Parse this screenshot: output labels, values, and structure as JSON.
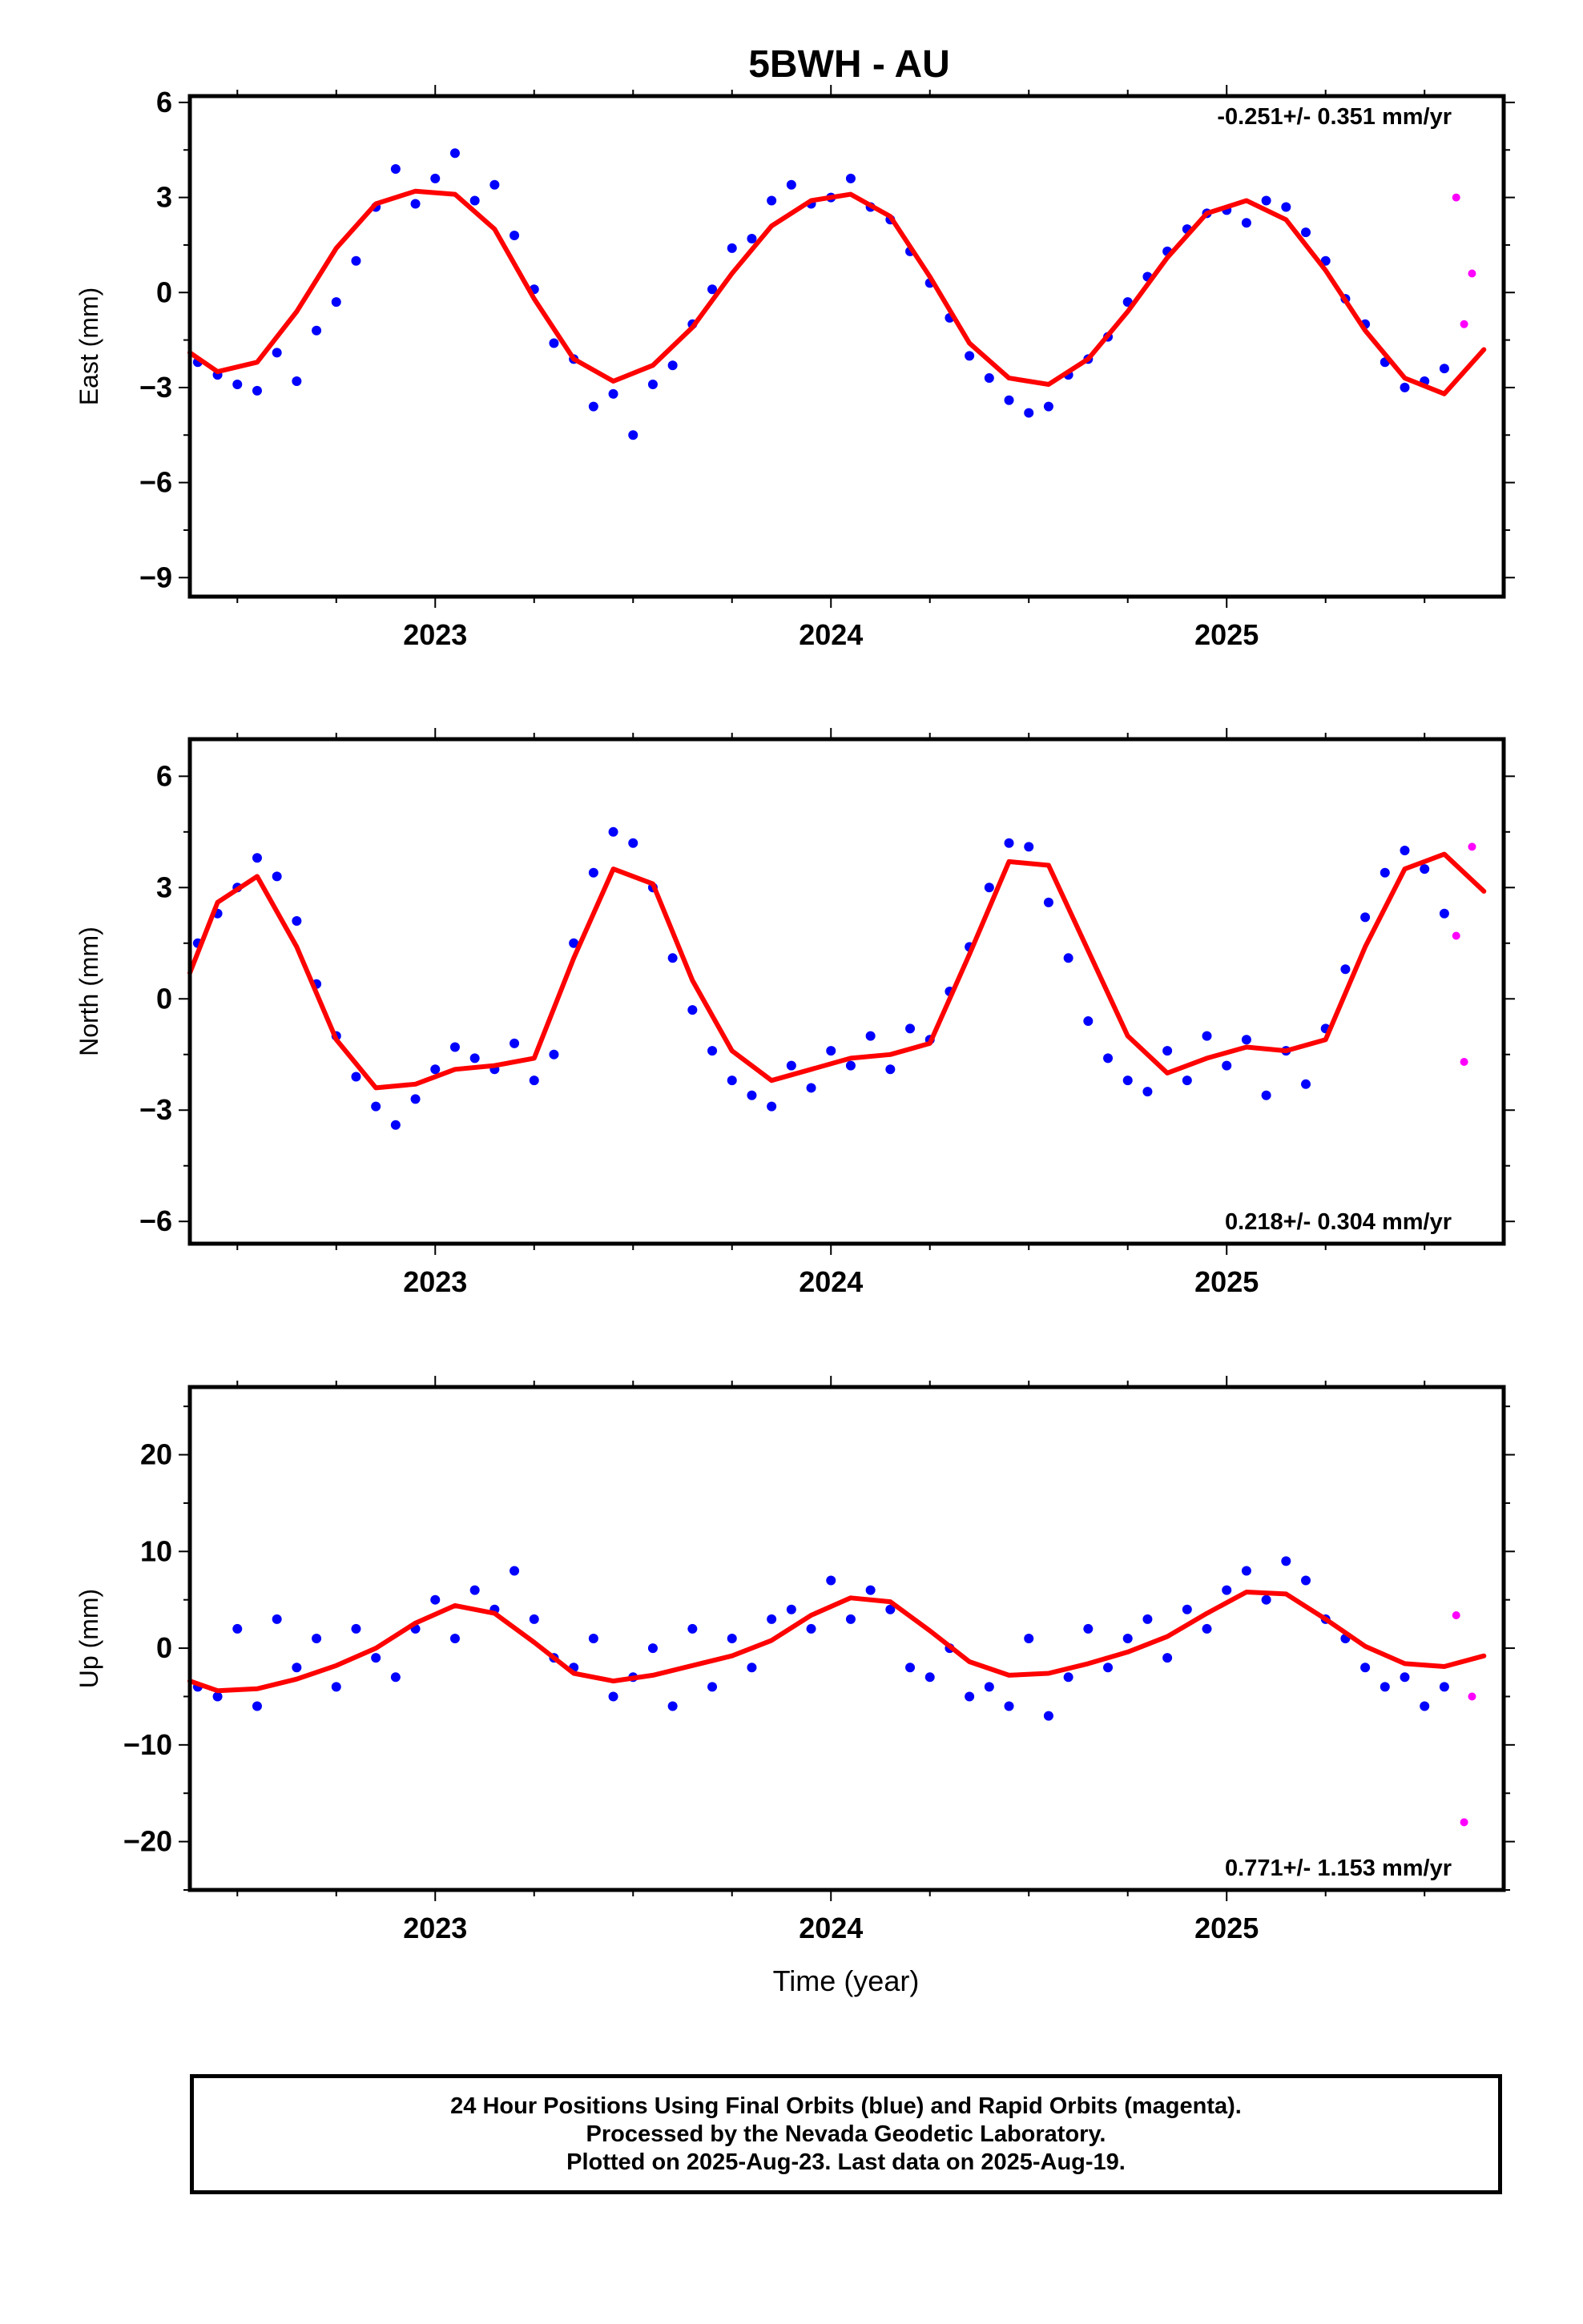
{
  "title": "5BWH - AU",
  "x_axis_label": "Time (year)",
  "colors": {
    "final_orbits": "#0000ff",
    "rapid_orbits": "#ff00ff",
    "fit": "#ff0000",
    "frame": "#000000"
  },
  "chart_data": [
    {
      "type": "scatter",
      "panel": "east",
      "ylabel": "East (mm)",
      "xlim": [
        2022.38,
        2025.7
      ],
      "ylim": [
        -9.6,
        6.2
      ],
      "x_ticks": [
        2023,
        2024,
        2025
      ],
      "x_tick_labels": [
        "2023",
        "2024",
        "2025"
      ],
      "y_ticks": [
        -9,
        -6,
        -3,
        0,
        3,
        6
      ],
      "y_tick_labels": [
        "−9",
        "−6",
        "−3",
        "0",
        "3",
        "6"
      ],
      "rate_text": "-0.251+/- 0.351 mm/yr",
      "rate_position": "top-right",
      "series": [
        {
          "role": "final",
          "x": [
            2022.4,
            2022.45,
            2022.5,
            2022.55,
            2022.6,
            2022.65,
            2022.7,
            2022.75,
            2022.8,
            2022.85,
            2022.9,
            2022.95,
            2023.0,
            2023.05,
            2023.1,
            2023.15,
            2023.2,
            2023.25,
            2023.3,
            2023.35,
            2023.4,
            2023.45,
            2023.5,
            2023.55,
            2023.6,
            2023.65,
            2023.7,
            2023.75,
            2023.8,
            2023.85,
            2023.9,
            2023.95,
            2024.0,
            2024.05,
            2024.1,
            2024.15,
            2024.2,
            2024.25,
            2024.3,
            2024.35,
            2024.4,
            2024.45,
            2024.5,
            2024.55,
            2024.6,
            2024.65,
            2024.7,
            2024.75,
            2024.8,
            2024.85,
            2024.9,
            2024.95,
            2025.0,
            2025.05,
            2025.1,
            2025.15,
            2025.2,
            2025.25,
            2025.3,
            2025.35,
            2025.4,
            2025.45,
            2025.5,
            2025.55
          ],
          "y": [
            -2.2,
            -2.6,
            -2.9,
            -3.1,
            -1.9,
            -2.8,
            -1.2,
            -0.3,
            1.0,
            2.7,
            3.9,
            2.8,
            3.6,
            4.4,
            2.9,
            3.4,
            1.8,
            0.1,
            -1.6,
            -2.1,
            -3.6,
            -3.2,
            -4.5,
            -2.9,
            -2.3,
            -1.0,
            0.1,
            1.4,
            1.7,
            2.9,
            3.4,
            2.8,
            3.0,
            3.6,
            2.7,
            2.3,
            1.3,
            0.3,
            -0.8,
            -2.0,
            -2.7,
            -3.4,
            -3.8,
            -3.6,
            -2.6,
            -2.1,
            -1.4,
            -0.3,
            0.5,
            1.3,
            2.0,
            2.5,
            2.6,
            2.2,
            2.9,
            2.7,
            1.9,
            1.0,
            -0.2,
            -1.0,
            -2.2,
            -3.0,
            -2.8,
            -2.4
          ]
        },
        {
          "role": "rapid",
          "x": [
            2025.58,
            2025.6,
            2025.62
          ],
          "y": [
            3.0,
            -1.0,
            0.6
          ]
        },
        {
          "role": "fit",
          "x": [
            2022.38,
            2022.45,
            2022.55,
            2022.65,
            2022.75,
            2022.85,
            2022.95,
            2023.05,
            2023.15,
            2023.25,
            2023.35,
            2023.45,
            2023.55,
            2023.65,
            2023.75,
            2023.85,
            2023.95,
            2024.05,
            2024.15,
            2024.25,
            2024.35,
            2024.45,
            2024.55,
            2024.65,
            2024.75,
            2024.85,
            2024.95,
            2025.05,
            2025.15,
            2025.25,
            2025.35,
            2025.45,
            2025.55,
            2025.65
          ],
          "y": [
            -1.9,
            -2.5,
            -2.2,
            -0.6,
            1.4,
            2.8,
            3.2,
            3.1,
            2.0,
            -0.2,
            -2.1,
            -2.8,
            -2.3,
            -1.1,
            0.6,
            2.1,
            2.9,
            3.1,
            2.4,
            0.5,
            -1.6,
            -2.7,
            -2.9,
            -2.1,
            -0.6,
            1.1,
            2.5,
            2.9,
            2.3,
            0.7,
            -1.2,
            -2.7,
            -3.2,
            -1.8
          ]
        }
      ]
    },
    {
      "type": "scatter",
      "panel": "north",
      "ylabel": "North (mm)",
      "xlim": [
        2022.38,
        2025.7
      ],
      "ylim": [
        -6.6,
        7.0
      ],
      "x_ticks": [
        2023,
        2024,
        2025
      ],
      "x_tick_labels": [
        "2023",
        "2024",
        "2025"
      ],
      "y_ticks": [
        -6,
        -3,
        0,
        3,
        6
      ],
      "y_tick_labels": [
        "−6",
        "−3",
        "0",
        "3",
        "6"
      ],
      "rate_text": "0.218+/- 0.304 mm/yr",
      "rate_position": "bottom-right",
      "series": [
        {
          "role": "final",
          "x": [
            2022.4,
            2022.45,
            2022.5,
            2022.55,
            2022.6,
            2022.65,
            2022.7,
            2022.75,
            2022.8,
            2022.85,
            2022.9,
            2022.95,
            2023.0,
            2023.05,
            2023.1,
            2023.15,
            2023.2,
            2023.25,
            2023.3,
            2023.35,
            2023.4,
            2023.45,
            2023.5,
            2023.55,
            2023.6,
            2023.65,
            2023.7,
            2023.75,
            2023.8,
            2023.85,
            2023.9,
            2023.95,
            2024.0,
            2024.05,
            2024.1,
            2024.15,
            2024.2,
            2024.25,
            2024.3,
            2024.35,
            2024.4,
            2024.45,
            2024.5,
            2024.55,
            2024.6,
            2024.65,
            2024.7,
            2024.75,
            2024.8,
            2024.85,
            2024.9,
            2024.95,
            2025.0,
            2025.05,
            2025.1,
            2025.15,
            2025.2,
            2025.25,
            2025.3,
            2025.35,
            2025.4,
            2025.45,
            2025.5,
            2025.55
          ],
          "y": [
            1.5,
            2.3,
            3.0,
            3.8,
            3.3,
            2.1,
            0.4,
            -1.0,
            -2.1,
            -2.9,
            -3.4,
            -2.7,
            -1.9,
            -1.3,
            -1.6,
            -1.9,
            -1.2,
            -2.2,
            -1.5,
            1.5,
            3.4,
            4.5,
            4.2,
            3.0,
            1.1,
            -0.3,
            -1.4,
            -2.2,
            -2.6,
            -2.9,
            -1.8,
            -2.4,
            -1.4,
            -1.8,
            -1.0,
            -1.9,
            -0.8,
            -1.1,
            0.2,
            1.4,
            3.0,
            4.2,
            4.1,
            2.6,
            1.1,
            -0.6,
            -1.6,
            -2.2,
            -2.5,
            -1.4,
            -2.2,
            -1.0,
            -1.8,
            -1.1,
            -2.6,
            -1.4,
            -2.3,
            -0.8,
            0.8,
            2.2,
            3.4,
            4.0,
            3.5,
            2.3
          ]
        },
        {
          "role": "rapid",
          "x": [
            2025.58,
            2025.6,
            2025.62
          ],
          "y": [
            1.7,
            -1.7,
            4.1
          ]
        },
        {
          "role": "fit",
          "x": [
            2022.38,
            2022.45,
            2022.55,
            2022.65,
            2022.75,
            2022.85,
            2022.95,
            2023.05,
            2023.15,
            2023.25,
            2023.35,
            2023.45,
            2023.55,
            2023.65,
            2023.75,
            2023.85,
            2023.95,
            2024.05,
            2024.15,
            2024.25,
            2024.35,
            2024.45,
            2024.55,
            2024.65,
            2024.75,
            2024.85,
            2024.95,
            2025.05,
            2025.15,
            2025.25,
            2025.35,
            2025.45,
            2025.55,
            2025.65
          ],
          "y": [
            0.7,
            2.6,
            3.3,
            1.4,
            -1.1,
            -2.4,
            -2.3,
            -1.9,
            -1.8,
            -1.6,
            1.1,
            3.5,
            3.1,
            0.5,
            -1.4,
            -2.2,
            -1.9,
            -1.6,
            -1.5,
            -1.2,
            1.2,
            3.7,
            3.6,
            1.3,
            -1.0,
            -2.0,
            -1.6,
            -1.3,
            -1.4,
            -1.1,
            1.4,
            3.5,
            3.9,
            2.9
          ]
        }
      ]
    },
    {
      "type": "scatter",
      "panel": "up",
      "ylabel": "Up (mm)",
      "xlim": [
        2022.38,
        2025.7
      ],
      "ylim": [
        -25,
        27
      ],
      "x_ticks": [
        2023,
        2024,
        2025
      ],
      "x_tick_labels": [
        "2023",
        "2024",
        "2025"
      ],
      "y_ticks": [
        -20,
        -10,
        0,
        10,
        20
      ],
      "y_tick_labels": [
        "−20",
        "−10",
        "0",
        "10",
        "20"
      ],
      "rate_text": "0.771+/- 1.153 mm/yr",
      "rate_position": "bottom-right",
      "series": [
        {
          "role": "final",
          "x": [
            2022.4,
            2022.45,
            2022.5,
            2022.55,
            2022.6,
            2022.65,
            2022.7,
            2022.75,
            2022.8,
            2022.85,
            2022.9,
            2022.95,
            2023.0,
            2023.05,
            2023.1,
            2023.15,
            2023.2,
            2023.25,
            2023.3,
            2023.35,
            2023.4,
            2023.45,
            2023.5,
            2023.55,
            2023.6,
            2023.65,
            2023.7,
            2023.75,
            2023.8,
            2023.85,
            2023.9,
            2023.95,
            2024.0,
            2024.05,
            2024.1,
            2024.15,
            2024.2,
            2024.25,
            2024.3,
            2024.35,
            2024.4,
            2024.45,
            2024.5,
            2024.55,
            2024.6,
            2024.65,
            2024.7,
            2024.75,
            2024.8,
            2024.85,
            2024.9,
            2024.95,
            2025.0,
            2025.05,
            2025.1,
            2025.15,
            2025.2,
            2025.25,
            2025.3,
            2025.35,
            2025.4,
            2025.45,
            2025.5,
            2025.55
          ],
          "y": [
            -4,
            -5,
            2,
            -6,
            3,
            -2,
            1,
            -4,
            2,
            -1,
            -3,
            2,
            5,
            1,
            6,
            4,
            8,
            3,
            -1,
            -2,
            1,
            -5,
            -3,
            0,
            -6,
            2,
            -4,
            1,
            -2,
            3,
            4,
            2,
            7,
            3,
            6,
            4,
            -2,
            -3,
            0,
            -5,
            -4,
            -6,
            1,
            -7,
            -3,
            2,
            -2,
            1,
            3,
            -1,
            4,
            2,
            6,
            8,
            5,
            9,
            7,
            3,
            1,
            -2,
            -4,
            -3,
            -6,
            -4
          ]
        },
        {
          "role": "rapid",
          "x": [
            2025.58,
            2025.6,
            2025.62
          ],
          "y": [
            3.4,
            -18,
            -5
          ]
        },
        {
          "role": "fit",
          "x": [
            2022.38,
            2022.45,
            2022.55,
            2022.65,
            2022.75,
            2022.85,
            2022.95,
            2023.05,
            2023.15,
            2023.25,
            2023.35,
            2023.45,
            2023.55,
            2023.65,
            2023.75,
            2023.85,
            2023.95,
            2024.05,
            2024.15,
            2024.25,
            2024.35,
            2024.45,
            2024.55,
            2024.65,
            2024.75,
            2024.85,
            2024.95,
            2025.05,
            2025.15,
            2025.25,
            2025.35,
            2025.45,
            2025.55,
            2025.65
          ],
          "y": [
            -3.4,
            -4.4,
            -4.2,
            -3.2,
            -1.8,
            0.0,
            2.6,
            4.4,
            3.6,
            0.6,
            -2.6,
            -3.4,
            -2.8,
            -1.8,
            -0.8,
            0.8,
            3.4,
            5.2,
            4.8,
            1.8,
            -1.4,
            -2.8,
            -2.6,
            -1.6,
            -0.4,
            1.2,
            3.6,
            5.8,
            5.6,
            3.0,
            0.2,
            -1.6,
            -1.9,
            -0.8
          ]
        }
      ]
    }
  ],
  "caption": {
    "line1": "24 Hour Positions Using Final Orbits (blue) and Rapid Orbits (magenta).",
    "line2": "Processed by the Nevada Geodetic Laboratory.",
    "line3": "Plotted on 2025-Aug-23. Last data on 2025-Aug-19."
  }
}
